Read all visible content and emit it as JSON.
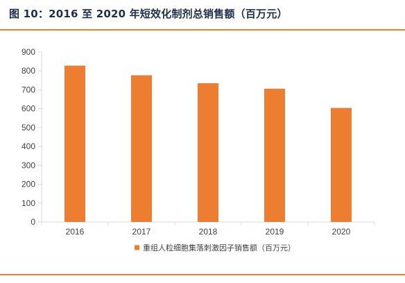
{
  "figure": {
    "title": "图 10：2016 至 2020 年短效化制剂总销售额（百万元）"
  },
  "colors": {
    "accent": "#e8802c",
    "bar": "#ed7d31",
    "axis": "#d9d9d9",
    "title": "#1f2e4d"
  },
  "chart_data": {
    "type": "bar",
    "categories": [
      "2016",
      "2017",
      "2018",
      "2019",
      "2020"
    ],
    "series": [
      {
        "name": "重组人粒细胞集落刺激因子销售额（百万元）",
        "values": [
          828,
          777,
          735,
          706,
          604
        ]
      }
    ],
    "ylim": [
      0,
      900
    ],
    "yticks": [
      0,
      100,
      200,
      300,
      400,
      500,
      600,
      700,
      800,
      900
    ],
    "grid": false,
    "legend": "bottom"
  }
}
